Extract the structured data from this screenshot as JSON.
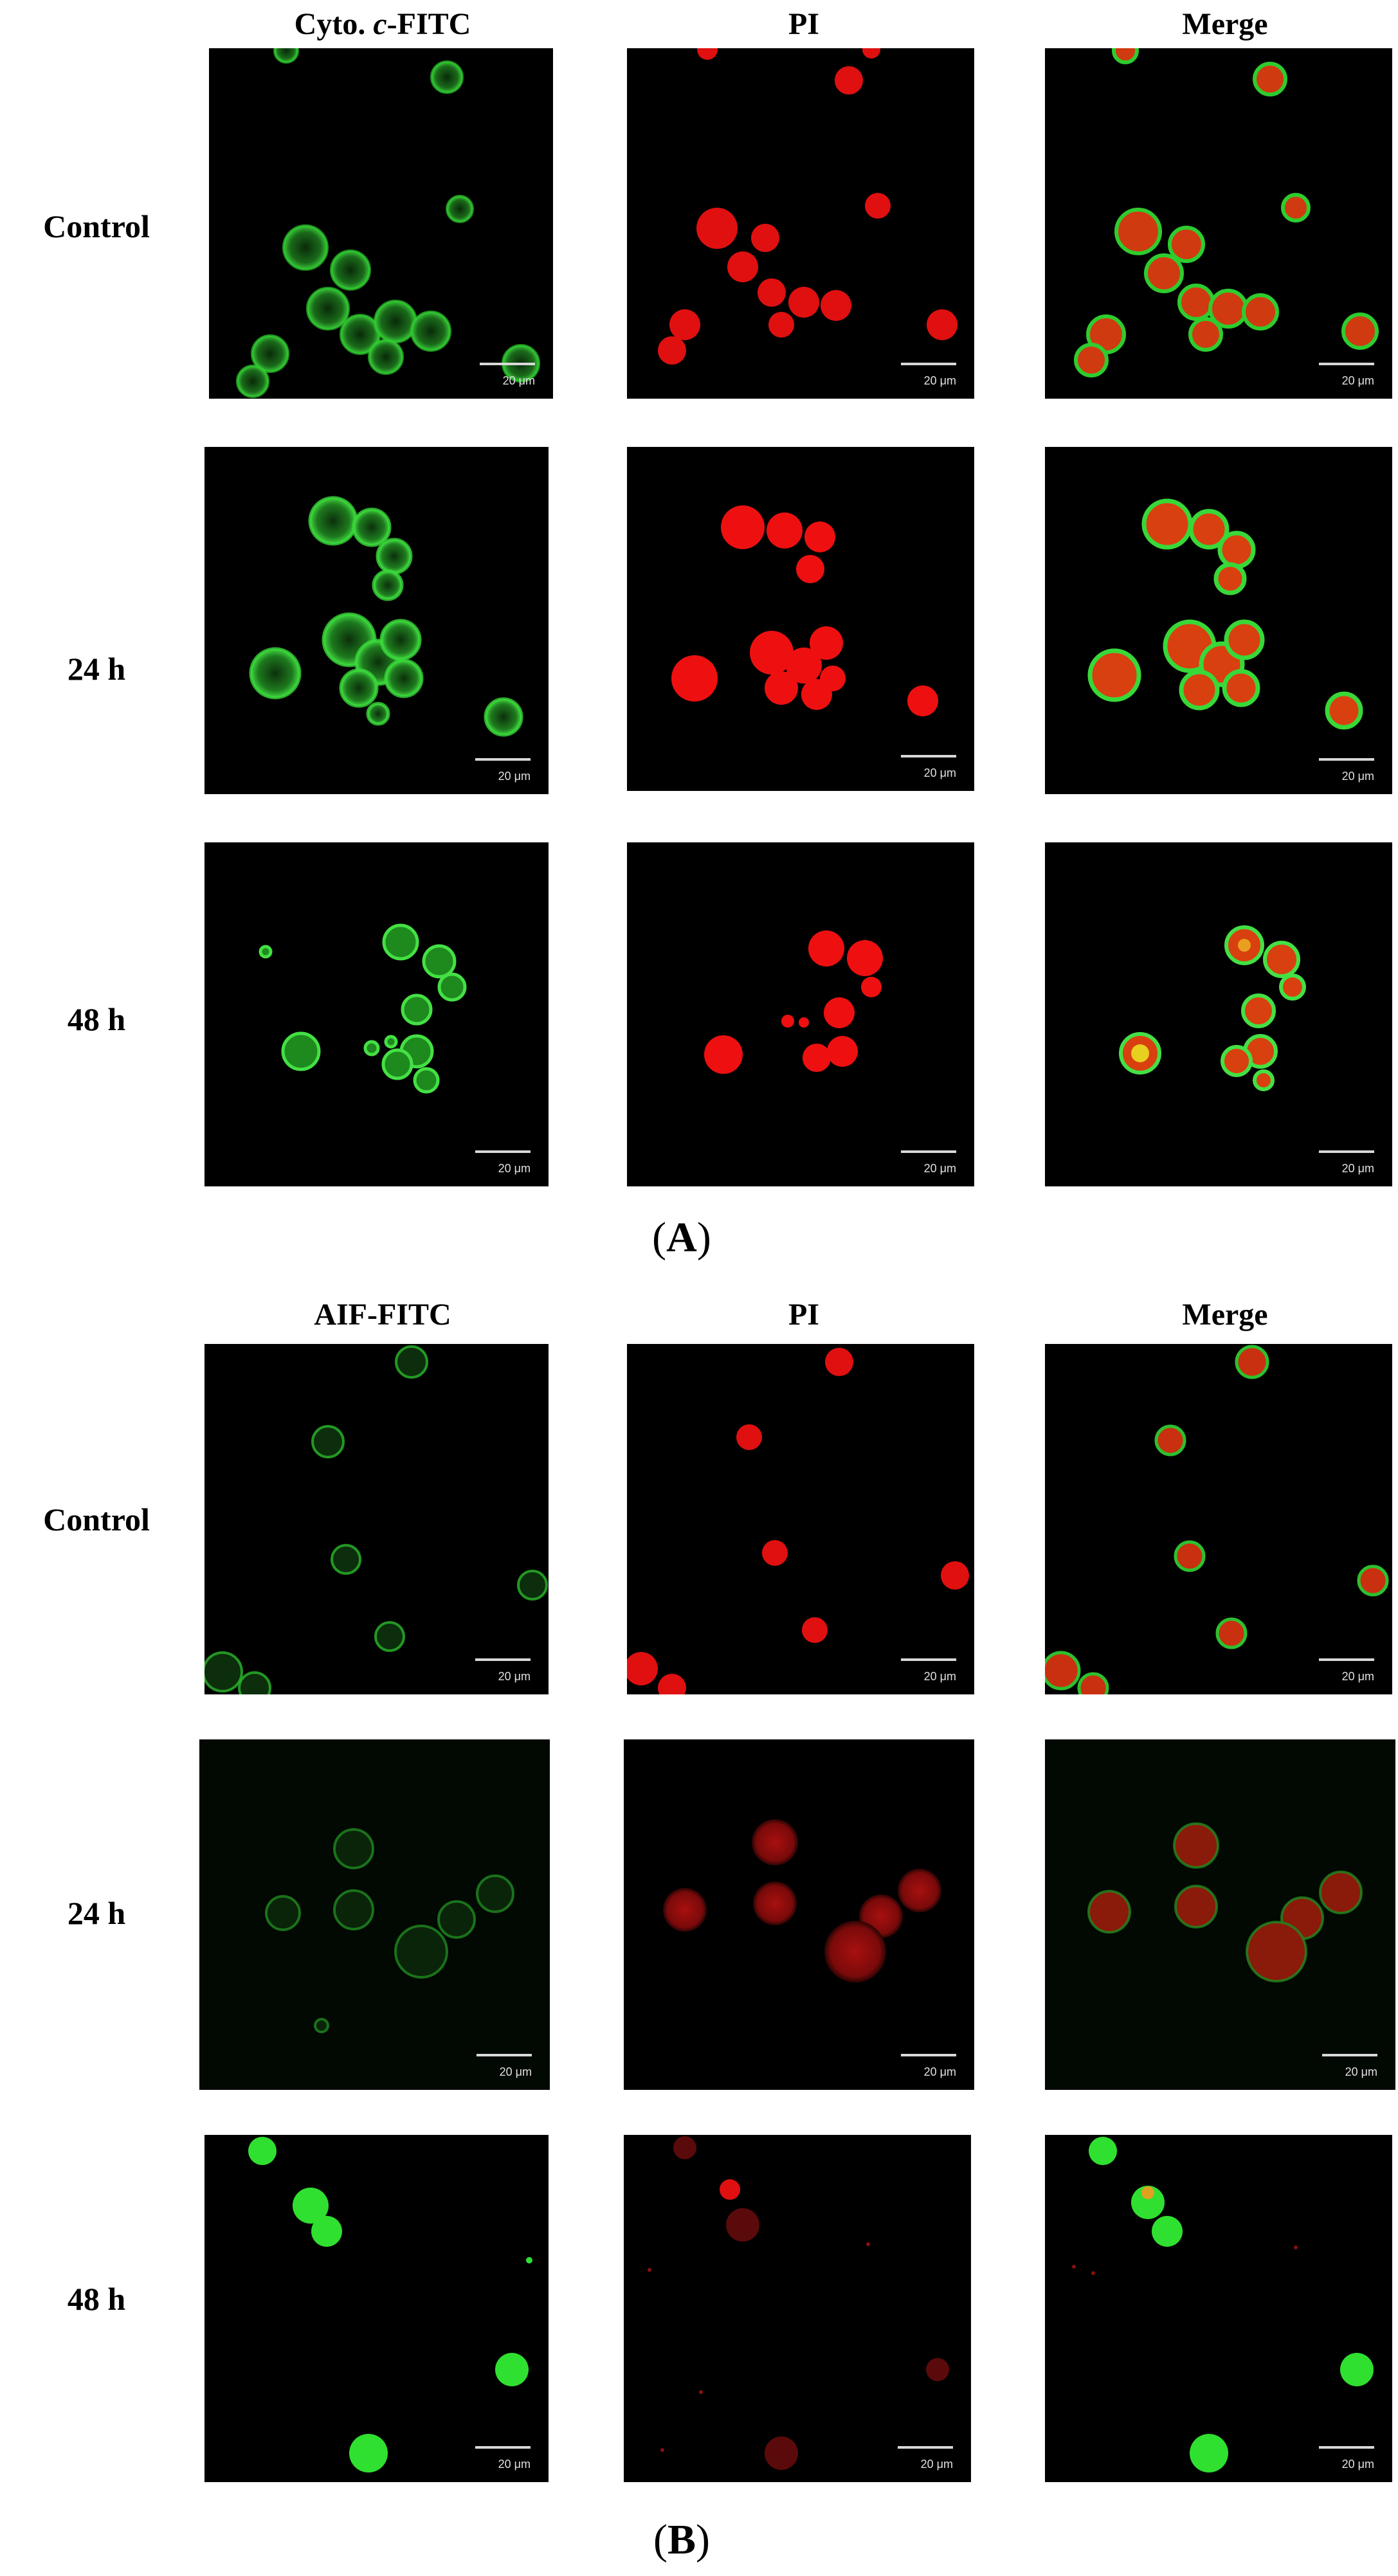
{
  "panels": [
    {
      "id": "A",
      "letter_open": "(",
      "letter": "A",
      "letter_close": ")",
      "columns": [
        {
          "label": "Cyto. ",
          "label_italic": "c",
          "label_suffix": "-FITC"
        },
        {
          "label": "PI",
          "label_italic": "",
          "label_suffix": ""
        },
        {
          "label": "Merge",
          "label_italic": "",
          "label_suffix": ""
        }
      ],
      "rows": [
        "Control",
        "24 h",
        "48 h"
      ]
    },
    {
      "id": "B",
      "letter_open": "(",
      "letter": "B",
      "letter_close": ")",
      "columns": [
        {
          "label": "AIF-FITC",
          "label_italic": "",
          "label_suffix": ""
        },
        {
          "label": "PI",
          "label_italic": "",
          "label_suffix": ""
        },
        {
          "label": "Merge",
          "label_italic": "",
          "label_suffix": ""
        }
      ],
      "rows": [
        "Control",
        "24 h",
        "48 h"
      ]
    }
  ],
  "scale_bar_label": "20 μm",
  "colors": {
    "fitc": "#2ecc2e",
    "pi": "#e01010",
    "background": "#000000"
  }
}
